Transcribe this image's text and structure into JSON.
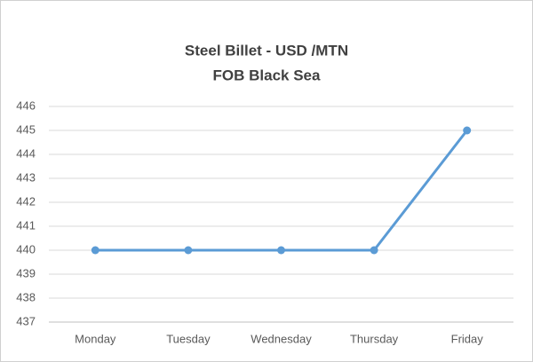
{
  "chart_data": {
    "type": "line",
    "title": "Steel Billet - USD /MTN",
    "subtitle": "FOB Black Sea",
    "categories": [
      "Monday",
      "Tuesday",
      "Wednesday",
      "Thursday",
      "Friday"
    ],
    "values": [
      440,
      440,
      440,
      440,
      445
    ],
    "color": "#5b9bd5",
    "ylim": [
      437,
      446
    ],
    "yticks": [
      437,
      438,
      439,
      440,
      441,
      442,
      443,
      444,
      445,
      446
    ],
    "grid": true
  }
}
